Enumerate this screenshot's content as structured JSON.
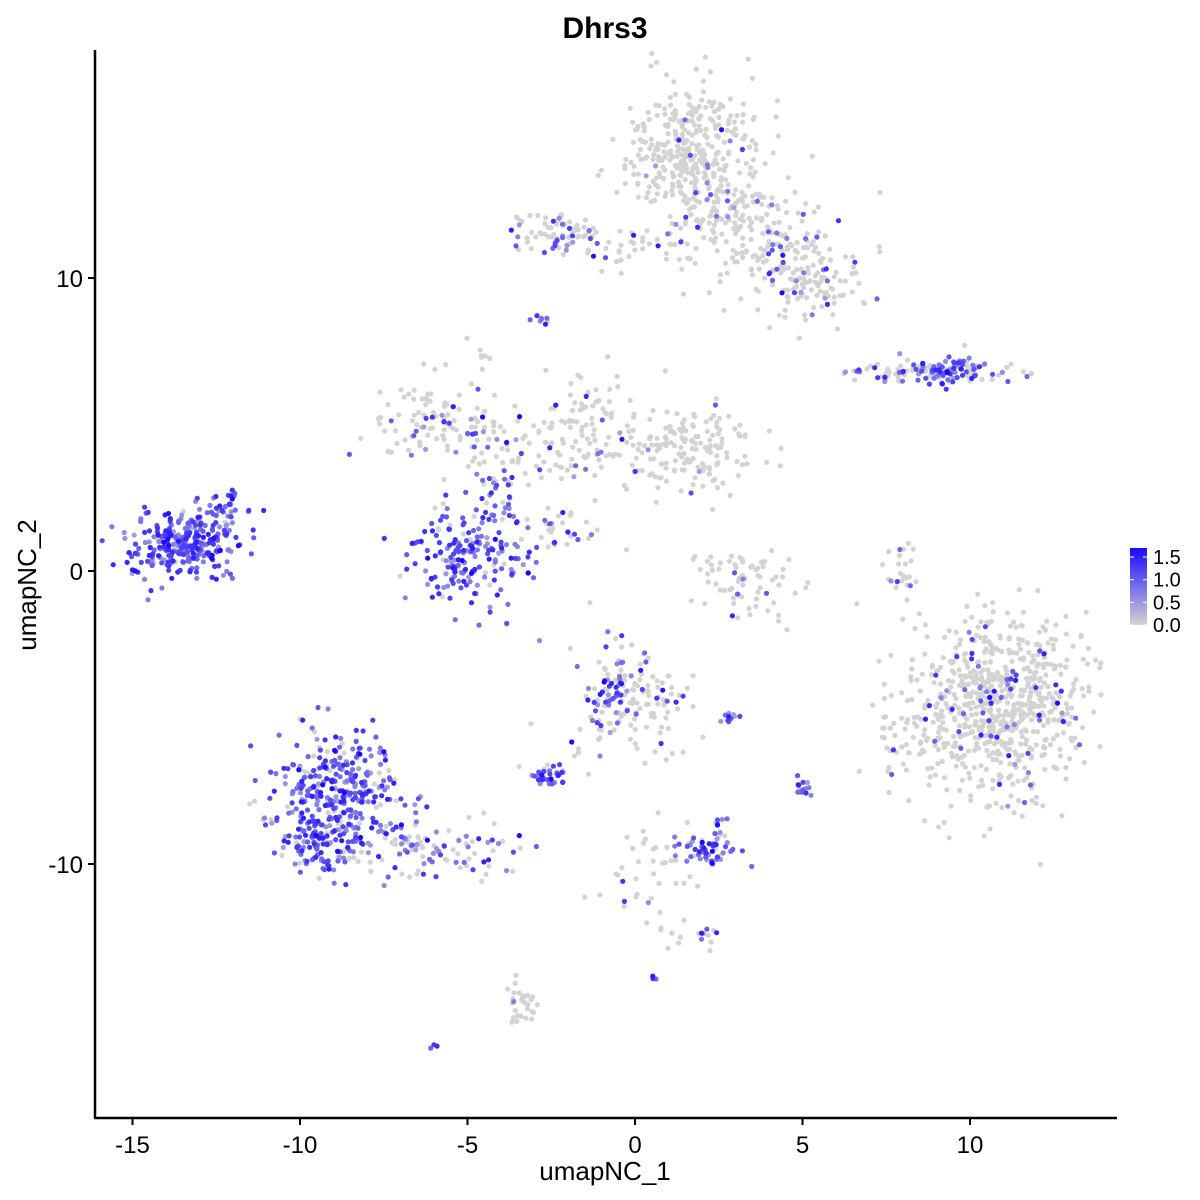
{
  "chart_data": {
    "type": "scatter",
    "title": "Dhrs3",
    "xlabel": "umapNC_1",
    "ylabel": "umapNC_2",
    "xlim": [
      -16.5,
      14.5
    ],
    "ylim": [
      -18.5,
      17.5
    ],
    "x_ticks": [
      -15,
      -10,
      -5,
      0,
      5,
      10
    ],
    "x_tick_labels": [
      "-15",
      "-10",
      "-5",
      "0",
      "5",
      "10"
    ],
    "y_ticks": [
      -10,
      0,
      10
    ],
    "y_tick_labels": [
      "-10",
      "0",
      "10"
    ],
    "grid": false,
    "legend_position": "right",
    "color_scale": {
      "low": "#d3d3d3",
      "high": "#1a0aff",
      "min": 0,
      "max": 1.7,
      "ticks": [
        0.0,
        0.5,
        1.0,
        1.5
      ],
      "tick_labels": [
        "0.0",
        "0.5",
        "1.0",
        "1.5"
      ]
    },
    "clusters": [
      {
        "cx": 1.8,
        "cy": 14.3,
        "sx": 1.0,
        "sy": 1.2,
        "n": 360,
        "expr_frac": 0.04
      },
      {
        "cx": 4.3,
        "cy": 11.2,
        "sx": 1.0,
        "sy": 0.9,
        "n": 150,
        "expr_frac": 0.12
      },
      {
        "cx": 5.3,
        "cy": 9.7,
        "sx": 0.8,
        "sy": 0.6,
        "n": 90,
        "expr_frac": 0.12
      },
      {
        "cx": 2.6,
        "cy": 12.2,
        "sx": 0.6,
        "sy": 0.7,
        "n": 60,
        "expr_frac": 0.05
      },
      {
        "cx": -2.2,
        "cy": 11.6,
        "sx": 0.8,
        "sy": 0.35,
        "n": 70,
        "expr_frac": 0.3
      },
      {
        "cx": 0.2,
        "cy": 11.0,
        "sx": 1.2,
        "sy": 0.4,
        "n": 45,
        "expr_frac": 0.08
      },
      {
        "cx": -2.8,
        "cy": 8.6,
        "sx": 0.15,
        "sy": 0.15,
        "n": 8,
        "expr_frac": 0.9
      },
      {
        "cx": -4.5,
        "cy": 7.3,
        "sx": 0.15,
        "sy": 0.15,
        "n": 6,
        "expr_frac": 0.1
      },
      {
        "cx": 8.8,
        "cy": 6.8,
        "sx": 1.4,
        "sy": 0.2,
        "n": 110,
        "expr_frac": 0.5
      },
      {
        "cx": 9.5,
        "cy": 6.9,
        "sx": 0.4,
        "sy": 0.25,
        "n": 40,
        "expr_frac": 0.9
      },
      {
        "cx": -6.2,
        "cy": 5.2,
        "sx": 1.0,
        "sy": 0.7,
        "n": 90,
        "expr_frac": 0.2
      },
      {
        "cx": -4.0,
        "cy": 4.2,
        "sx": 1.0,
        "sy": 0.8,
        "n": 70,
        "expr_frac": 0.15
      },
      {
        "cx": -1.3,
        "cy": 5.2,
        "sx": 0.8,
        "sy": 0.8,
        "n": 70,
        "expr_frac": 0.12
      },
      {
        "cx": 1.8,
        "cy": 4.2,
        "sx": 1.0,
        "sy": 0.7,
        "n": 140,
        "expr_frac": 0.05
      },
      {
        "cx": -0.8,
        "cy": 3.8,
        "sx": 1.0,
        "sy": 0.5,
        "n": 50,
        "expr_frac": 0.08
      },
      {
        "cx": -13.5,
        "cy": 0.9,
        "sx": 0.8,
        "sy": 0.6,
        "n": 260,
        "expr_frac": 0.98
      },
      {
        "cx": -12.2,
        "cy": 1.8,
        "sx": 0.4,
        "sy": 0.5,
        "n": 50,
        "expr_frac": 0.9
      },
      {
        "cx": -5.0,
        "cy": 0.4,
        "sx": 0.9,
        "sy": 0.9,
        "n": 190,
        "expr_frac": 0.9
      },
      {
        "cx": -4.2,
        "cy": 2.2,
        "sx": 0.4,
        "sy": 0.6,
        "n": 25,
        "expr_frac": 0.85
      },
      {
        "cx": -2.0,
        "cy": 1.3,
        "sx": 0.6,
        "sy": 0.4,
        "n": 25,
        "expr_frac": 0.5
      },
      {
        "cx": 3.3,
        "cy": -0.3,
        "sx": 0.7,
        "sy": 0.6,
        "n": 70,
        "expr_frac": 0.08
      },
      {
        "cx": 8.0,
        "cy": -0.2,
        "sx": 0.2,
        "sy": 0.6,
        "n": 25,
        "expr_frac": 0.15
      },
      {
        "cx": 10.9,
        "cy": -4.6,
        "sx": 1.3,
        "sy": 1.5,
        "n": 700,
        "expr_frac": 0.1
      },
      {
        "cx": 8.5,
        "cy": -5.6,
        "sx": 0.7,
        "sy": 1.0,
        "n": 60,
        "expr_frac": 0.06
      },
      {
        "cx": -0.5,
        "cy": -4.0,
        "sx": 0.5,
        "sy": 0.7,
        "n": 110,
        "expr_frac": 0.45
      },
      {
        "cx": 0.8,
        "cy": -4.8,
        "sx": 0.7,
        "sy": 0.7,
        "n": 50,
        "expr_frac": 0.2
      },
      {
        "cx": 2.8,
        "cy": -5.0,
        "sx": 0.2,
        "sy": 0.1,
        "n": 10,
        "expr_frac": 1.0
      },
      {
        "cx": -2.5,
        "cy": -7.0,
        "sx": 0.3,
        "sy": 0.2,
        "n": 35,
        "expr_frac": 0.8
      },
      {
        "cx": -1.6,
        "cy": -5.8,
        "sx": 0.4,
        "sy": 0.5,
        "n": 10,
        "expr_frac": 0.3
      },
      {
        "cx": 5.0,
        "cy": -7.4,
        "sx": 0.15,
        "sy": 0.3,
        "n": 15,
        "expr_frac": 0.9
      },
      {
        "cx": 2.2,
        "cy": -9.5,
        "sx": 0.5,
        "sy": 0.3,
        "n": 55,
        "expr_frac": 0.85
      },
      {
        "cx": 2.5,
        "cy": -8.6,
        "sx": 0.1,
        "sy": 0.15,
        "n": 6,
        "expr_frac": 0.8
      },
      {
        "cx": -8.7,
        "cy": -7.5,
        "sx": 1.0,
        "sy": 1.2,
        "n": 330,
        "expr_frac": 0.85
      },
      {
        "cx": -9.6,
        "cy": -9.2,
        "sx": 0.6,
        "sy": 0.5,
        "n": 90,
        "expr_frac": 0.85
      },
      {
        "cx": -6.2,
        "cy": -9.5,
        "sx": 1.4,
        "sy": 0.5,
        "n": 110,
        "expr_frac": 0.45
      },
      {
        "cx": 0.5,
        "cy": -10.8,
        "sx": 0.7,
        "sy": 1.1,
        "n": 40,
        "expr_frac": 0.08
      },
      {
        "cx": 2.0,
        "cy": -12.4,
        "sx": 0.4,
        "sy": 0.2,
        "n": 15,
        "expr_frac": 0.2
      },
      {
        "cx": -3.4,
        "cy": -14.7,
        "sx": 0.2,
        "sy": 0.4,
        "n": 30,
        "expr_frac": 0.05
      },
      {
        "cx": 0.6,
        "cy": -13.9,
        "sx": 0.05,
        "sy": 0.05,
        "n": 3,
        "expr_frac": 1.0
      },
      {
        "cx": -6.0,
        "cy": -16.2,
        "sx": 0.05,
        "sy": 0.05,
        "n": 3,
        "expr_frac": 0.6
      },
      {
        "cx": -2.2,
        "cy": -2.0,
        "sx": 1.8,
        "sy": 3.5,
        "n": 10,
        "expr_frac": 0.05
      }
    ]
  }
}
